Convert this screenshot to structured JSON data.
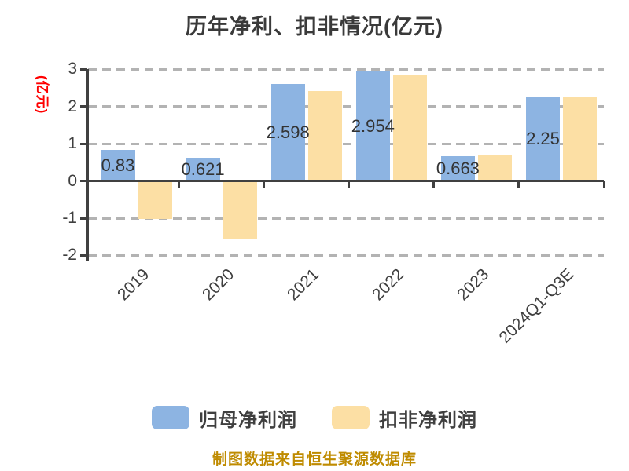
{
  "title": "历年净利、扣非情况(亿元)",
  "y_axis": {
    "unit_label": "(亿元)",
    "unit_color": "#ff0000",
    "tick_labels": [
      "3",
      "2",
      "1",
      "0",
      "-1",
      "-2"
    ],
    "tick_values": [
      3,
      2,
      1,
      0,
      -1,
      -2
    ]
  },
  "legend": [
    {
      "label": "归母净利润",
      "color": "#8db4e2"
    },
    {
      "label": "扣非净利润",
      "color": "#fcdfa4"
    }
  ],
  "footer": "制图数据来自恒生聚源数据库",
  "colors": {
    "title": "#3a3a3a",
    "axis": "#404040",
    "gridline": "#b3b3b3",
    "bar_label": "#333333",
    "footer": "#bf8b00"
  },
  "chart_data": {
    "type": "bar",
    "title": "历年净利、扣非情况(亿元)",
    "categories": [
      "2019",
      "2020",
      "2021",
      "2022",
      "2023",
      "2024Q1-Q3E"
    ],
    "series": [
      {
        "name": "归母净利润",
        "color": "#8db4e2",
        "values": [
          0.83,
          0.621,
          2.598,
          2.954,
          0.663,
          2.25
        ],
        "labels": [
          "0.83",
          "0.621",
          "2.598",
          "2.954",
          "0.663",
          "2.25"
        ]
      },
      {
        "name": "扣非净利润",
        "color": "#fcdfa4",
        "values": [
          -1.0,
          -1.53,
          2.41,
          2.87,
          0.68,
          2.28
        ],
        "labels": null
      }
    ],
    "ylabel": "(亿元)",
    "xlabel": "",
    "ylim": [
      -2,
      3
    ],
    "grid": "horizontal dashed",
    "legend_position": "bottom",
    "x_tick_rotation": 45
  }
}
